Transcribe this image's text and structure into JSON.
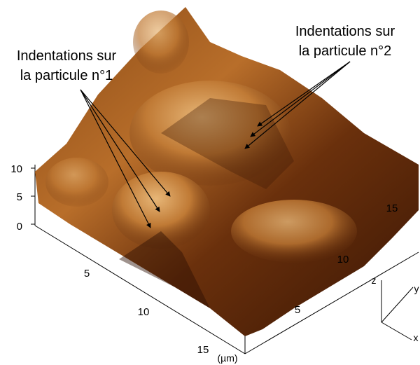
{
  "annotations": [
    {
      "lines": [
        "Indentations sur",
        "la particule n°1"
      ]
    },
    {
      "lines": [
        "Indentations sur",
        "la particule n°2"
      ]
    }
  ],
  "z_axis": {
    "ticks": [
      10,
      5,
      0
    ]
  },
  "x_axis": {
    "ticks": [
      5,
      10,
      15
    ]
  },
  "y_axis": {
    "ticks": [
      5,
      10,
      15
    ]
  },
  "unit": "(µm)",
  "orientation": {
    "z": "z",
    "y": "y",
    "x": "x"
  }
}
